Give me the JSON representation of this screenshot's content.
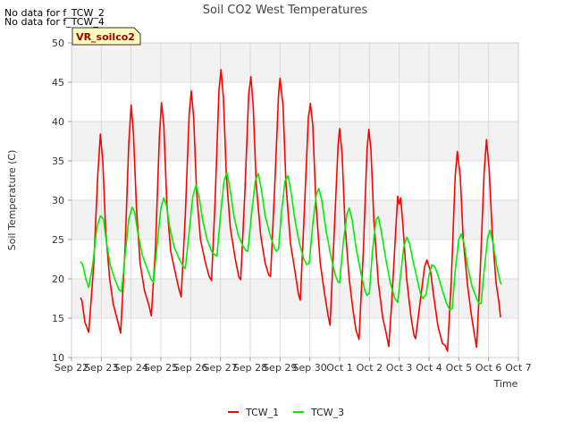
{
  "notices": [
    "No data for f_TCW_2",
    "No data for f_TCW_4"
  ],
  "badge": "VR_soilco2",
  "chart_data": {
    "type": "line",
    "title": "Soil CO2 West Temperatures",
    "xlabel": "Time",
    "ylabel": "Soil Temperature (C)",
    "ylim": [
      10,
      50
    ],
    "yticks": [
      10,
      15,
      20,
      25,
      30,
      35,
      40,
      45,
      50
    ],
    "xlim": [
      0,
      15
    ],
    "xtick_labels": [
      "Sep 22",
      "Sep 23",
      "Sep 24",
      "Sep 25",
      "Sep 26",
      "Sep 27",
      "Sep 28",
      "Sep 29",
      "Sep 30",
      "Oct 1",
      "Oct 2",
      "Oct 3",
      "Oct 4",
      "Oct 5",
      "Oct 6",
      "Oct 7"
    ],
    "grid": true,
    "legend_position": "bottom",
    "colors": {
      "TCW_1": "#ff0000",
      "TCW_3": "#00ee00",
      "band": "#f2f2f2",
      "grid": "#dddddd",
      "badge_bg": "#ffffc0",
      "badge_text": "#990000"
    },
    "series": [
      {
        "name": "TCW_1",
        "color": "#ff0000",
        "points": [
          [
            0.3,
            17.6
          ],
          [
            0.35,
            17.2
          ],
          [
            0.45,
            14.5
          ],
          [
            0.58,
            13.2
          ],
          [
            0.75,
            22.0
          ],
          [
            0.88,
            33.0
          ],
          [
            0.97,
            38.4
          ],
          [
            1.05,
            35.0
          ],
          [
            1.15,
            26.0
          ],
          [
            1.28,
            20.0
          ],
          [
            1.4,
            16.8
          ],
          [
            1.55,
            14.6
          ],
          [
            1.65,
            13.1
          ],
          [
            1.8,
            24.0
          ],
          [
            1.92,
            37.0
          ],
          [
            2.0,
            42.1
          ],
          [
            2.08,
            38.5
          ],
          [
            2.18,
            29.0
          ],
          [
            2.3,
            22.0
          ],
          [
            2.45,
            18.5
          ],
          [
            2.6,
            16.6
          ],
          [
            2.68,
            15.3
          ],
          [
            2.82,
            24.0
          ],
          [
            2.95,
            38.0
          ],
          [
            3.02,
            42.4
          ],
          [
            3.1,
            39.5
          ],
          [
            3.2,
            29.5
          ],
          [
            3.33,
            23.5
          ],
          [
            3.5,
            20.5
          ],
          [
            3.6,
            18.8
          ],
          [
            3.68,
            17.7
          ],
          [
            3.82,
            28.0
          ],
          [
            3.95,
            41.0
          ],
          [
            4.02,
            43.9
          ],
          [
            4.1,
            40.5
          ],
          [
            4.2,
            31.0
          ],
          [
            4.33,
            25.0
          ],
          [
            4.5,
            22.0
          ],
          [
            4.62,
            20.3
          ],
          [
            4.7,
            19.8
          ],
          [
            4.82,
            30.0
          ],
          [
            4.95,
            44.0
          ],
          [
            5.02,
            46.6
          ],
          [
            5.1,
            43.0
          ],
          [
            5.2,
            33.0
          ],
          [
            5.33,
            26.5
          ],
          [
            5.5,
            22.5
          ],
          [
            5.62,
            20.2
          ],
          [
            5.68,
            19.9
          ],
          [
            5.82,
            31.0
          ],
          [
            5.95,
            43.5
          ],
          [
            6.02,
            45.7
          ],
          [
            6.1,
            42.0
          ],
          [
            6.2,
            32.0
          ],
          [
            6.35,
            25.5
          ],
          [
            6.5,
            22.0
          ],
          [
            6.62,
            20.5
          ],
          [
            6.68,
            20.3
          ],
          [
            6.82,
            31.5
          ],
          [
            6.95,
            43.5
          ],
          [
            7.0,
            45.5
          ],
          [
            7.1,
            42.0
          ],
          [
            7.2,
            32.0
          ],
          [
            7.35,
            24.5
          ],
          [
            7.5,
            21.0
          ],
          [
            7.62,
            18.0
          ],
          [
            7.68,
            17.3
          ],
          [
            7.82,
            29.0
          ],
          [
            7.95,
            40.5
          ],
          [
            8.02,
            42.3
          ],
          [
            8.1,
            39.5
          ],
          [
            8.2,
            30.0
          ],
          [
            8.35,
            22.0
          ],
          [
            8.5,
            18.0
          ],
          [
            8.62,
            15.2
          ],
          [
            8.68,
            14.1
          ],
          [
            8.82,
            26.0
          ],
          [
            8.95,
            37.0
          ],
          [
            9.0,
            39.1
          ],
          [
            9.08,
            36.0
          ],
          [
            9.18,
            27.0
          ],
          [
            9.32,
            20.0
          ],
          [
            9.45,
            16.0
          ],
          [
            9.55,
            13.5
          ],
          [
            9.65,
            12.3
          ],
          [
            9.8,
            24.0
          ],
          [
            9.92,
            36.5
          ],
          [
            9.98,
            39.0
          ],
          [
            10.05,
            36.5
          ],
          [
            10.15,
            27.5
          ],
          [
            10.3,
            19.5
          ],
          [
            10.45,
            15.0
          ],
          [
            10.55,
            13.3
          ],
          [
            10.65,
            11.4
          ],
          [
            10.75,
            17.0
          ],
          [
            10.88,
            26.0
          ],
          [
            10.95,
            30.5
          ],
          [
            11.0,
            29.5
          ],
          [
            11.05,
            30.3
          ],
          [
            11.12,
            27.0
          ],
          [
            11.25,
            20.0
          ],
          [
            11.4,
            15.0
          ],
          [
            11.5,
            12.8
          ],
          [
            11.55,
            12.4
          ],
          [
            11.7,
            17.0
          ],
          [
            11.85,
            21.5
          ],
          [
            11.93,
            22.4
          ],
          [
            12.05,
            21.0
          ],
          [
            12.15,
            18.0
          ],
          [
            12.3,
            14.0
          ],
          [
            12.45,
            11.8
          ],
          [
            12.55,
            11.5
          ],
          [
            12.62,
            10.8
          ],
          [
            12.75,
            20.0
          ],
          [
            12.88,
            33.0
          ],
          [
            12.95,
            36.2
          ],
          [
            13.05,
            33.0
          ],
          [
            13.15,
            25.0
          ],
          [
            13.3,
            19.0
          ],
          [
            13.42,
            15.5
          ],
          [
            13.52,
            13.0
          ],
          [
            13.6,
            11.3
          ],
          [
            13.72,
            21.0
          ],
          [
            13.85,
            33.5
          ],
          [
            13.93,
            37.7
          ],
          [
            14.02,
            34.0
          ],
          [
            14.12,
            26.0
          ],
          [
            14.25,
            19.5
          ],
          [
            14.35,
            17.0
          ],
          [
            14.4,
            15.1
          ]
        ]
      },
      {
        "name": "TCW_3",
        "color": "#00ee00",
        "points": [
          [
            0.3,
            22.2
          ],
          [
            0.38,
            21.8
          ],
          [
            0.48,
            20.0
          ],
          [
            0.58,
            18.9
          ],
          [
            0.72,
            22.0
          ],
          [
            0.85,
            26.5
          ],
          [
            0.97,
            28.0
          ],
          [
            1.07,
            27.6
          ],
          [
            1.18,
            24.5
          ],
          [
            1.3,
            21.8
          ],
          [
            1.45,
            20.0
          ],
          [
            1.6,
            18.6
          ],
          [
            1.68,
            18.4
          ],
          [
            1.8,
            23.0
          ],
          [
            1.92,
            27.5
          ],
          [
            2.03,
            29.1
          ],
          [
            2.12,
            28.5
          ],
          [
            2.22,
            26.0
          ],
          [
            2.38,
            23.0
          ],
          [
            2.55,
            21.2
          ],
          [
            2.68,
            19.9
          ],
          [
            2.75,
            19.6
          ],
          [
            2.88,
            24.5
          ],
          [
            3.0,
            29.0
          ],
          [
            3.1,
            30.3
          ],
          [
            3.18,
            29.5
          ],
          [
            3.3,
            26.5
          ],
          [
            3.45,
            24.0
          ],
          [
            3.62,
            22.5
          ],
          [
            3.75,
            21.6
          ],
          [
            3.82,
            21.3
          ],
          [
            3.95,
            26.0
          ],
          [
            4.07,
            30.5
          ],
          [
            4.18,
            31.9
          ],
          [
            4.28,
            30.5
          ],
          [
            4.4,
            27.5
          ],
          [
            4.55,
            25.0
          ],
          [
            4.7,
            23.5
          ],
          [
            4.82,
            23.0
          ],
          [
            4.88,
            22.9
          ],
          [
            5.0,
            28.0
          ],
          [
            5.12,
            32.5
          ],
          [
            5.22,
            33.5
          ],
          [
            5.32,
            31.5
          ],
          [
            5.45,
            28.0
          ],
          [
            5.6,
            25.5
          ],
          [
            5.75,
            24.2
          ],
          [
            5.85,
            23.6
          ],
          [
            5.92,
            23.5
          ],
          [
            6.05,
            28.5
          ],
          [
            6.17,
            32.5
          ],
          [
            6.27,
            33.4
          ],
          [
            6.37,
            31.5
          ],
          [
            6.5,
            28.0
          ],
          [
            6.65,
            25.8
          ],
          [
            6.8,
            24.0
          ],
          [
            6.88,
            23.5
          ],
          [
            6.95,
            23.8
          ],
          [
            7.05,
            28.5
          ],
          [
            7.17,
            32.5
          ],
          [
            7.27,
            33.1
          ],
          [
            7.37,
            31.0
          ],
          [
            7.5,
            27.5
          ],
          [
            7.65,
            24.5
          ],
          [
            7.8,
            22.5
          ],
          [
            7.9,
            21.8
          ],
          [
            7.98,
            22.0
          ],
          [
            8.1,
            27.0
          ],
          [
            8.22,
            30.8
          ],
          [
            8.3,
            31.5
          ],
          [
            8.4,
            30.0
          ],
          [
            8.55,
            26.0
          ],
          [
            8.7,
            23.0
          ],
          [
            8.85,
            20.5
          ],
          [
            8.95,
            19.6
          ],
          [
            9.0,
            19.5
          ],
          [
            9.12,
            24.5
          ],
          [
            9.25,
            28.3
          ],
          [
            9.32,
            29.0
          ],
          [
            9.42,
            27.5
          ],
          [
            9.55,
            24.0
          ],
          [
            9.7,
            21.0
          ],
          [
            9.85,
            18.5
          ],
          [
            9.92,
            17.9
          ],
          [
            10.0,
            18.2
          ],
          [
            10.1,
            23.5
          ],
          [
            10.22,
            27.5
          ],
          [
            10.3,
            27.9
          ],
          [
            10.4,
            26.0
          ],
          [
            10.55,
            22.5
          ],
          [
            10.7,
            19.5
          ],
          [
            10.85,
            17.5
          ],
          [
            10.95,
            17.0
          ],
          [
            11.05,
            20.5
          ],
          [
            11.15,
            24.0
          ],
          [
            11.25,
            25.3
          ],
          [
            11.35,
            24.5
          ],
          [
            11.45,
            22.5
          ],
          [
            11.6,
            20.0
          ],
          [
            11.72,
            18.0
          ],
          [
            11.8,
            17.5
          ],
          [
            11.9,
            18.0
          ],
          [
            12.0,
            20.5
          ],
          [
            12.1,
            21.8
          ],
          [
            12.2,
            21.5
          ],
          [
            12.3,
            20.5
          ],
          [
            12.45,
            18.5
          ],
          [
            12.6,
            16.8
          ],
          [
            12.7,
            16.1
          ],
          [
            12.78,
            16.2
          ],
          [
            12.88,
            21.0
          ],
          [
            13.0,
            25.0
          ],
          [
            13.08,
            25.7
          ],
          [
            13.18,
            24.5
          ],
          [
            13.3,
            21.5
          ],
          [
            13.45,
            19.0
          ],
          [
            13.6,
            17.5
          ],
          [
            13.68,
            16.8
          ],
          [
            13.75,
            16.9
          ],
          [
            13.85,
            21.0
          ],
          [
            13.97,
            25.3
          ],
          [
            14.05,
            26.2
          ],
          [
            14.15,
            24.5
          ],
          [
            14.28,
            21.5
          ],
          [
            14.4,
            19.5
          ],
          [
            14.43,
            19.3
          ]
        ]
      }
    ]
  }
}
